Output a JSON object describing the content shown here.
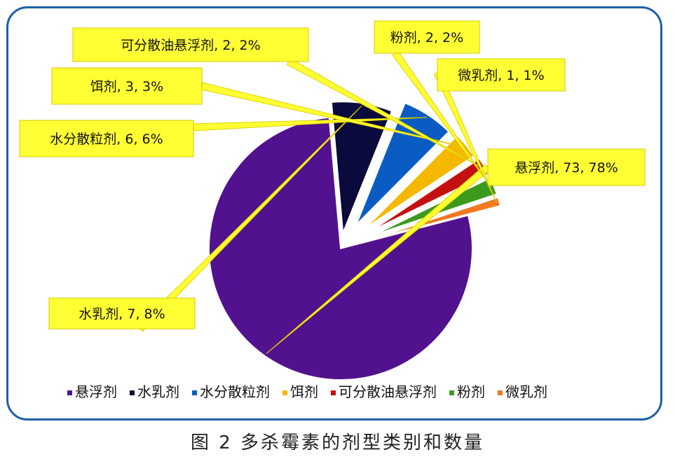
{
  "caption": "图 2  多杀霉素的剂型类别和数量",
  "chart_data": {
    "type": "pie",
    "title": "",
    "legend_position": "bottom",
    "slices": [
      {
        "label": "悬浮剂",
        "value": 73,
        "percent": "78%",
        "color": "#52118e",
        "text": "悬浮剂, 73, 78%"
      },
      {
        "label": "水乳剂",
        "value": 7,
        "percent": "8%",
        "color": "#0a0a3c",
        "text": "水乳剂, 7, 8%"
      },
      {
        "label": "水分散粒剂",
        "value": 6,
        "percent": "6%",
        "color": "#0a5cc2",
        "text": "水分散粒剂, 6, 6%"
      },
      {
        "label": "饵剂",
        "value": 3,
        "percent": "3%",
        "color": "#f5b800",
        "text": "饵剂, 3, 3%"
      },
      {
        "label": "可分散油悬浮剂",
        "value": 2,
        "percent": "2%",
        "color": "#c41010",
        "text": "可分散油悬浮剂, 2, 2%"
      },
      {
        "label": "粉剂",
        "value": 2,
        "percent": "2%",
        "color": "#3c9a1e",
        "text": "粉剂, 2, 2%"
      },
      {
        "label": "微乳剂",
        "value": 1,
        "percent": "1%",
        "color": "#f07820",
        "text": "微乳剂, 1, 1%"
      }
    ]
  }
}
